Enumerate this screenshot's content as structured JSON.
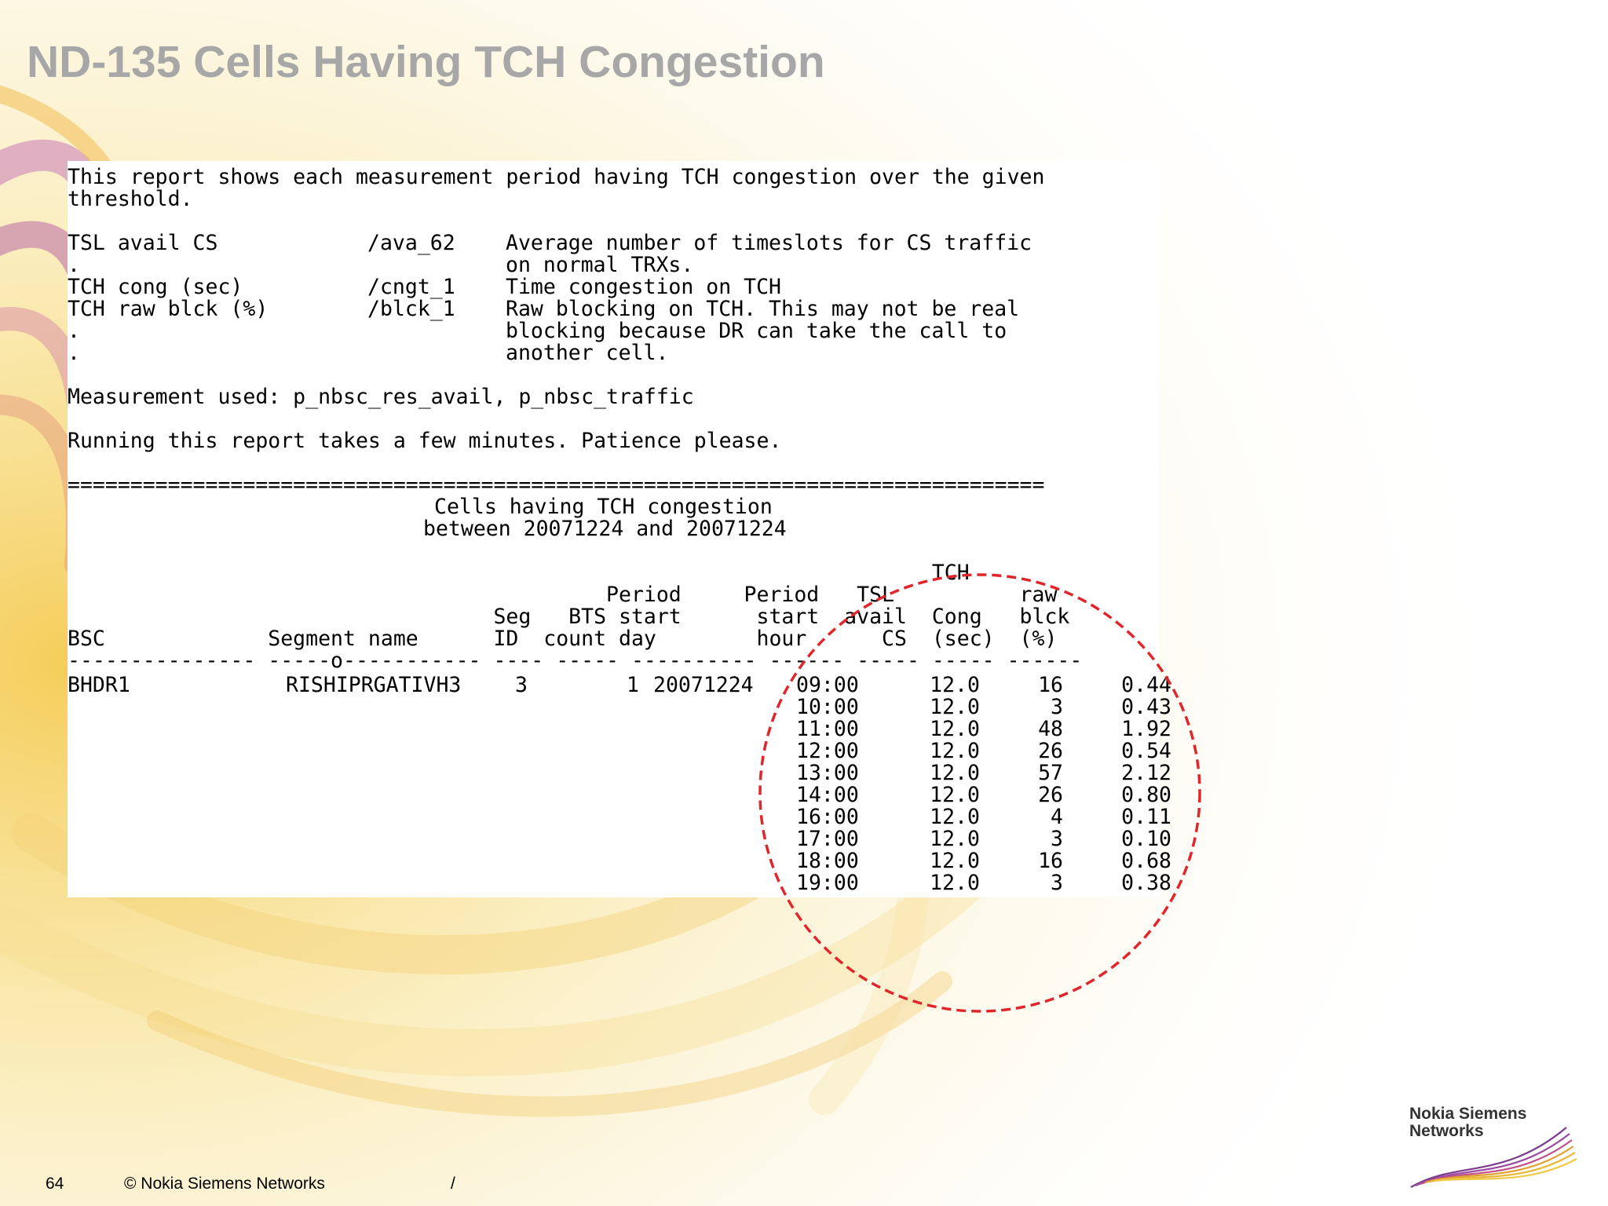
{
  "slide": {
    "title": "ND-135 Cells Having TCH Congestion"
  },
  "report": {
    "intro_line1": "This report shows each measurement period having TCH congestion over the given",
    "intro_line2": "threshold.",
    "definitions": [
      {
        "label": "TSL avail CS",
        "code": "/ava_62",
        "desc": "Average number of timeslots for CS traffic"
      },
      {
        "label": ".",
        "code": "",
        "desc": "on normal TRXs."
      },
      {
        "label": "TCH cong (sec)",
        "code": "/cngt_1",
        "desc": "Time congestion on TCH"
      },
      {
        "label": "TCH raw blck (%)",
        "code": "/blck_1",
        "desc": "Raw blocking on TCH. This may not be real"
      },
      {
        "label": ".",
        "code": "",
        "desc": "blocking because DR can take the call to"
      },
      {
        "label": ".",
        "code": "",
        "desc": "another cell."
      }
    ],
    "measurement_line": "Measurement used: p_nbsc_res_avail, p_nbsc_traffic",
    "running_line": "Running this report takes a few minutes. Patience please.",
    "separator": "==============================================================================",
    "report_title": "Cells having TCH congestion",
    "report_period": "between 20071224 and 20071224",
    "header_lines": [
      "                                                                     TCH",
      "                                           Period     Period   TSL          raw",
      "                                  Seg   BTS start      start  avail  Cong   blck",
      "BSC             Segment name      ID  count day        hour      CS  (sec)  (%)",
      "--------------- -----o----------- ---- ----- ---------- ------ ----- ----- ------"
    ],
    "first_row": {
      "bsc": "BHDR1",
      "segment_name": "RISHIPRGATIVH3",
      "seg_id": "3",
      "bts_count": "1",
      "start_day": "20071224"
    },
    "rows": [
      {
        "hour": "09:00",
        "tsl": "12.0",
        "cong": "16",
        "blck": "0.44"
      },
      {
        "hour": "10:00",
        "tsl": "12.0",
        "cong": "3",
        "blck": "0.43"
      },
      {
        "hour": "11:00",
        "tsl": "12.0",
        "cong": "48",
        "blck": "1.92"
      },
      {
        "hour": "12:00",
        "tsl": "12.0",
        "cong": "26",
        "blck": "0.54"
      },
      {
        "hour": "13:00",
        "tsl": "12.0",
        "cong": "57",
        "blck": "2.12"
      },
      {
        "hour": "14:00",
        "tsl": "12.0",
        "cong": "26",
        "blck": "0.80"
      },
      {
        "hour": "16:00",
        "tsl": "12.0",
        "cong": "4",
        "blck": "0.11"
      },
      {
        "hour": "17:00",
        "tsl": "12.0",
        "cong": "3",
        "blck": "0.10"
      },
      {
        "hour": "18:00",
        "tsl": "12.0",
        "cong": "16",
        "blck": "0.68"
      },
      {
        "hour": "19:00",
        "tsl": "12.0",
        "cong": "3",
        "blck": "0.38"
      }
    ]
  },
  "footer": {
    "page_number": "64",
    "copyright": "© Nokia Siemens Networks",
    "slash": "/"
  },
  "logo": {
    "line1": "Nokia Siemens",
    "line2": "Networks"
  },
  "colors": {
    "title": "#a7a7a7",
    "annotation": "#e0262b"
  }
}
